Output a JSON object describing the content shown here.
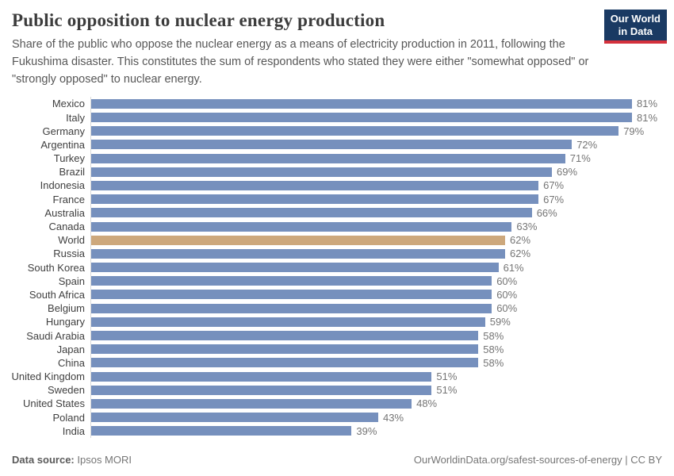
{
  "header": {
    "title": "Public opposition to nuclear energy production",
    "subtitle": "Share of the public who oppose the nuclear energy as a means of electricity production in 2011, following the Fukushima disaster. This constitutes the sum of respondents who stated they were either \"somewhat opposed\" or \"strongly opposed\" to nuclear energy.",
    "logo": {
      "line1": "Our World",
      "line2": "in Data",
      "background_color": "#1a3a63",
      "accent_color": "#d4313c"
    }
  },
  "chart_data": {
    "type": "bar",
    "orientation": "horizontal",
    "title": "Public opposition to nuclear energy production",
    "categories": [
      "Mexico",
      "Italy",
      "Germany",
      "Argentina",
      "Turkey",
      "Brazil",
      "Indonesia",
      "France",
      "Australia",
      "Canada",
      "World",
      "Russia",
      "South Korea",
      "Spain",
      "South Africa",
      "Belgium",
      "Hungary",
      "Saudi Arabia",
      "Japan",
      "China",
      "United Kingdom",
      "Sweden",
      "United States",
      "Poland",
      "India"
    ],
    "values": [
      81,
      81,
      79,
      72,
      71,
      69,
      67,
      67,
      66,
      63,
      62,
      62,
      61,
      60,
      60,
      60,
      59,
      58,
      58,
      58,
      51,
      51,
      48,
      43,
      39
    ],
    "value_suffix": "%",
    "value_labels": true,
    "highlight_category": "World",
    "bar_color": "#7690bd",
    "highlight_color": "#cda87c",
    "axis_line_color": "#d9d9d9",
    "value_axis_visible": false,
    "grid": false,
    "xlim": [
      0,
      81
    ]
  },
  "footer": {
    "data_source_label": "Data source:",
    "data_source_value": "Ipsos MORI",
    "attribution": "OurWorldinData.org/safest-sources-of-energy | CC BY"
  }
}
